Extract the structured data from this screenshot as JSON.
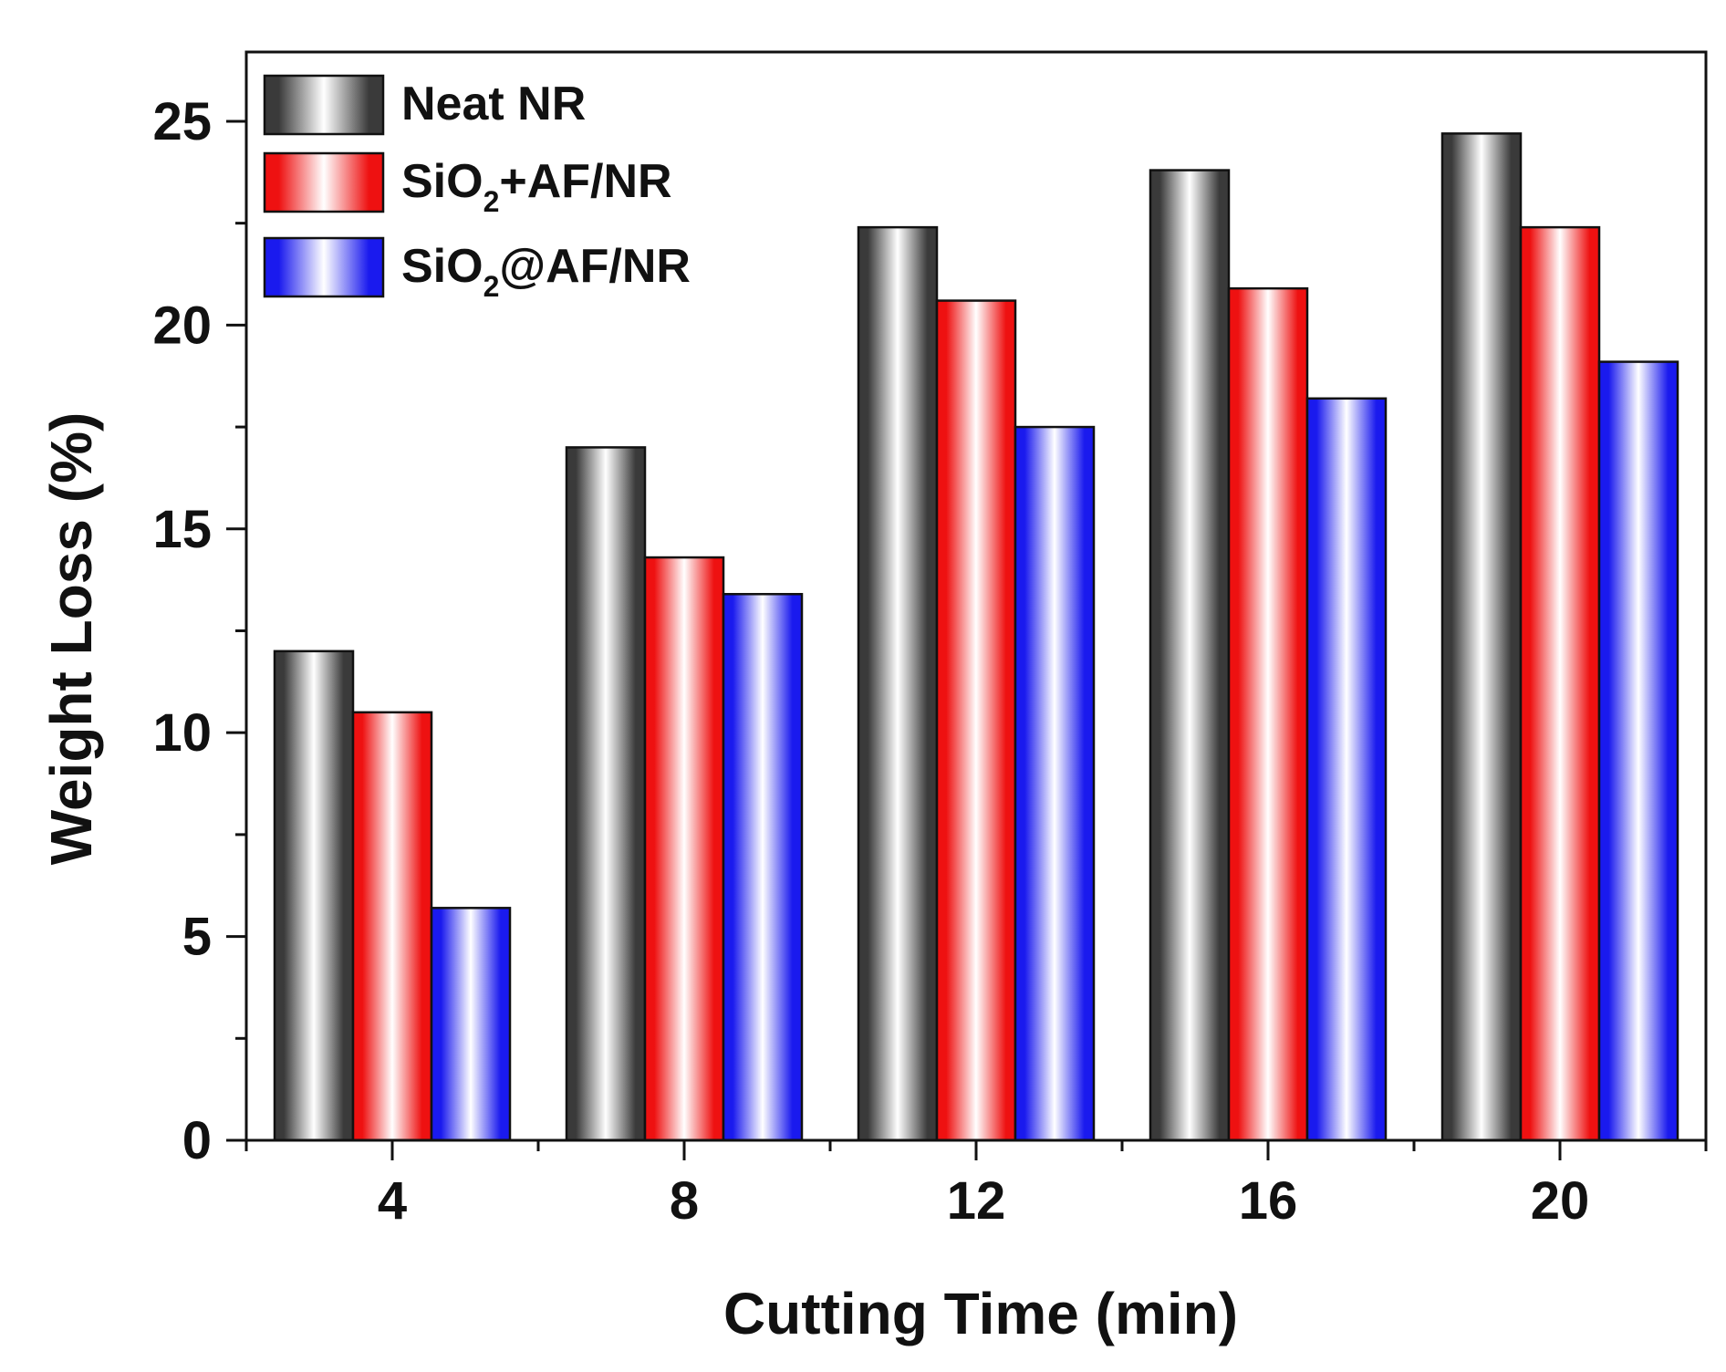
{
  "chart_data": {
    "type": "bar",
    "title": "",
    "xlabel": "Cutting Time (min)",
    "ylabel": "Weight Loss (%)",
    "categories": [
      "4",
      "8",
      "12",
      "16",
      "20"
    ],
    "ylim": [
      0,
      26.7
    ],
    "yticks": [
      0,
      5,
      10,
      15,
      20,
      25
    ],
    "ytick_labels": [
      "0",
      "5",
      "10",
      "15",
      "20",
      "25"
    ],
    "grid": false,
    "legend_position": "top-left",
    "series": [
      {
        "name": "Neat NR",
        "legend_main": "Neat NR",
        "legend_sub": "",
        "legend_after": "",
        "color": "#3a3a3a",
        "values": [
          12.0,
          17.0,
          22.4,
          23.8,
          24.7
        ]
      },
      {
        "name": "SiO2+AF/NR",
        "legend_main": "SiO",
        "legend_sub": "2",
        "legend_after": "+AF/NR",
        "color": "#ee1111",
        "values": [
          10.5,
          14.3,
          20.6,
          20.9,
          22.4
        ]
      },
      {
        "name": "SiO2@AF/NR",
        "legend_main": "SiO",
        "legend_sub": "2",
        "legend_after": "@AF/NR",
        "color": "#1a1aee",
        "values": [
          5.7,
          13.4,
          17.5,
          18.2,
          19.1
        ]
      }
    ]
  }
}
